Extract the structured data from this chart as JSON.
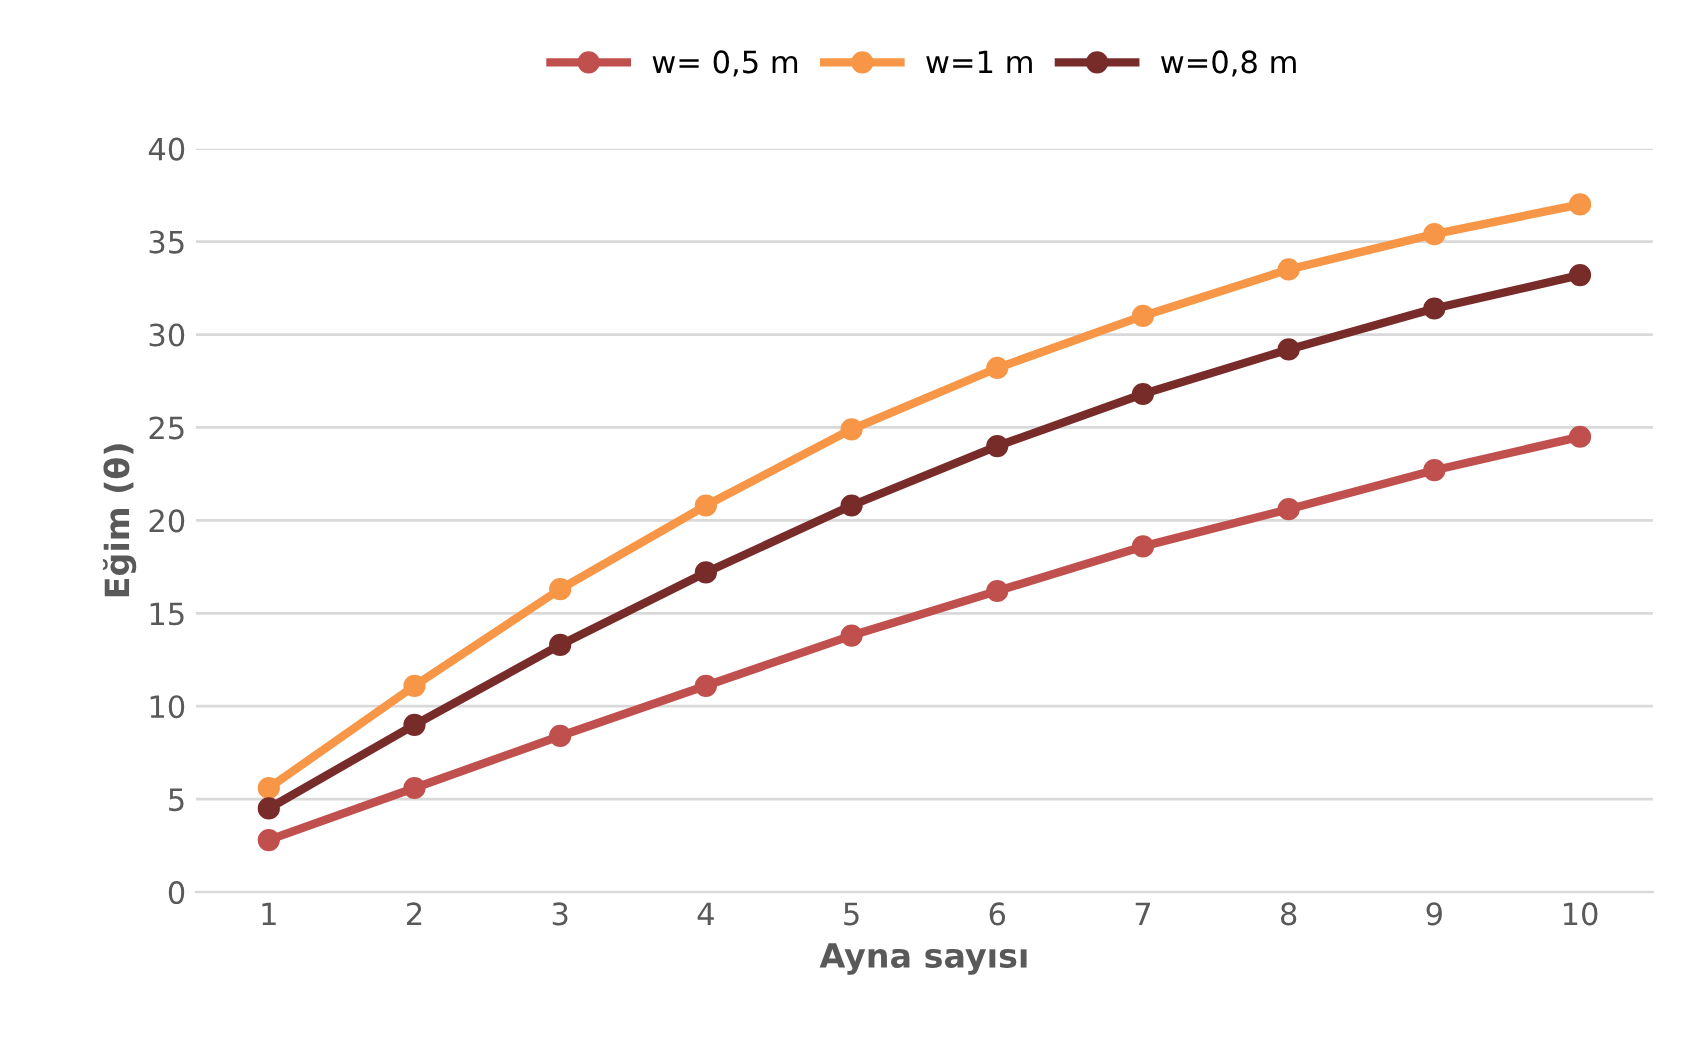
{
  "chart_data": {
    "type": "line",
    "xlabel": "Ayna sayısı",
    "ylabel": "Eğim (θ)",
    "categories": [
      "1",
      "2",
      "3",
      "4",
      "5",
      "6",
      "7",
      "8",
      "9",
      "10"
    ],
    "series": [
      {
        "name": "w= 0,5 m",
        "color": "#c0504d",
        "values": [
          2.8,
          5.6,
          8.4,
          11.1,
          13.8,
          16.2,
          18.6,
          20.6,
          22.7,
          24.5
        ]
      },
      {
        "name": "w=1 m",
        "color": "#f79646",
        "values": [
          5.6,
          11.1,
          16.3,
          20.8,
          24.9,
          28.2,
          31.0,
          33.5,
          35.4,
          37.0
        ]
      },
      {
        "name": "w=0,8 m",
        "color": "#772c2a",
        "values": [
          4.5,
          9.0,
          13.3,
          17.2,
          20.8,
          24.0,
          26.8,
          29.2,
          31.4,
          33.2
        ]
      }
    ],
    "ylim": [
      0,
      40
    ],
    "yticks": [
      0,
      5,
      10,
      15,
      20,
      25,
      30,
      35,
      40
    ],
    "grid": "y",
    "legend": "top",
    "marker": "circle",
    "line_style": "solid"
  }
}
